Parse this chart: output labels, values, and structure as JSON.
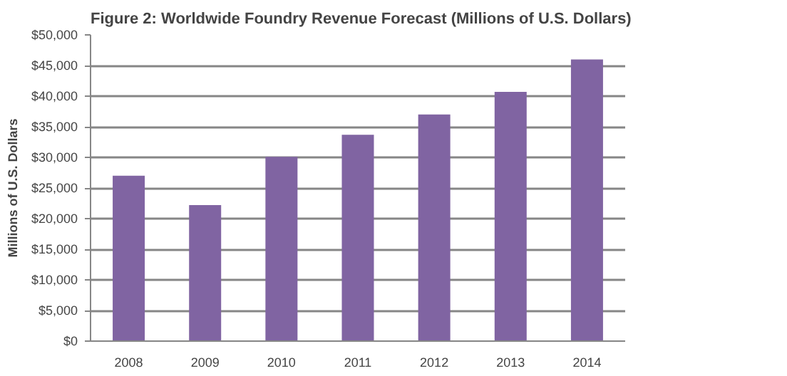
{
  "chart_data": {
    "type": "bar",
    "title": "Figure 2: Worldwide Foundry Revenue Forecast (Millions of U.S. Dollars)",
    "ylabel": "Millions of U.S. Dollars",
    "categories": [
      "2008",
      "2009",
      "2010",
      "2011",
      "2012",
      "2013",
      "2014"
    ],
    "values": [
      27000,
      22200,
      30100,
      33700,
      37000,
      40700,
      46000
    ],
    "color": "#8064a2",
    "ylim": [
      0,
      50000
    ],
    "yticks": [
      {
        "value": 0,
        "label": "$0"
      },
      {
        "value": 5000,
        "label": "$5,000"
      },
      {
        "value": 10000,
        "label": "$10,000"
      },
      {
        "value": 15000,
        "label": "$15,000"
      },
      {
        "value": 20000,
        "label": "$20,000"
      },
      {
        "value": 25000,
        "label": "$25,000"
      },
      {
        "value": 30000,
        "label": "$30,000"
      },
      {
        "value": 35000,
        "label": "$35,000"
      },
      {
        "value": 40000,
        "label": "$40,000"
      },
      {
        "value": 45000,
        "label": "$45,000"
      },
      {
        "value": 50000,
        "label": "$50,000"
      }
    ],
    "grid": "y"
  }
}
